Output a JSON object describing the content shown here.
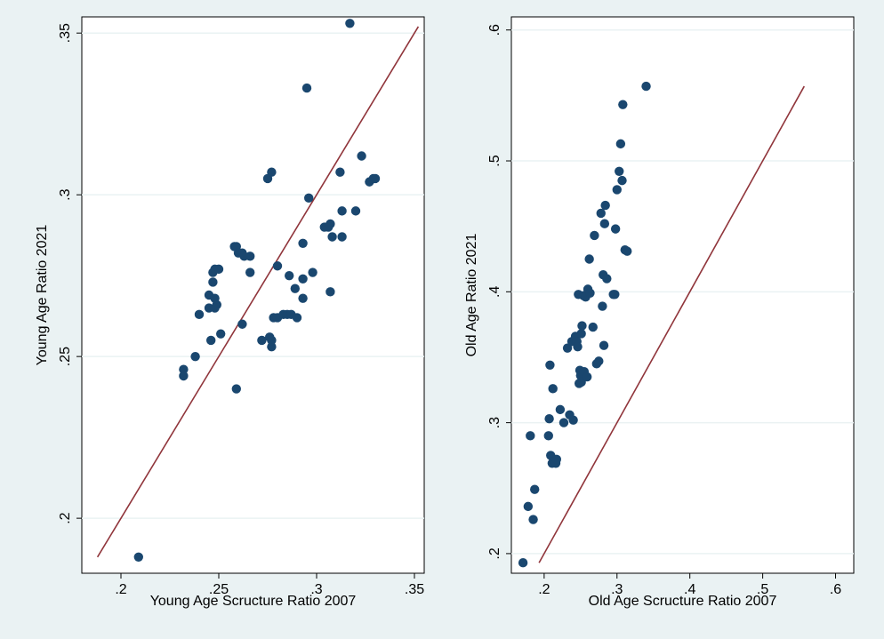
{
  "chart_data": [
    {
      "type": "scatter",
      "xlabel": "Young Age Scructure Ratio 2007",
      "ylabel": "Young Age Ratio 2021",
      "xlim": [
        0.18,
        0.355
      ],
      "ylim": [
        0.183,
        0.355
      ],
      "xticks": [
        0.2,
        0.25,
        0.3,
        0.35
      ],
      "xtick_labels": [
        ".2",
        ".25",
        ".3",
        ".35"
      ],
      "yticks": [
        0.2,
        0.25,
        0.3,
        0.35
      ],
      "ytick_labels": [
        ".2",
        ".25",
        ".3",
        ".35"
      ],
      "grid": "horizontal",
      "marker_color": "#1a476f",
      "line_color": "#90353b",
      "reference_line": {
        "type": "identity",
        "from": 0.188,
        "to": 0.352
      },
      "points": [
        [
          0.209,
          0.188
        ],
        [
          0.232,
          0.246
        ],
        [
          0.232,
          0.244
        ],
        [
          0.238,
          0.25
        ],
        [
          0.24,
          0.263
        ],
        [
          0.245,
          0.269
        ],
        [
          0.245,
          0.265
        ],
        [
          0.246,
          0.255
        ],
        [
          0.247,
          0.273
        ],
        [
          0.247,
          0.276
        ],
        [
          0.248,
          0.277
        ],
        [
          0.248,
          0.268
        ],
        [
          0.248,
          0.265
        ],
        [
          0.249,
          0.266
        ],
        [
          0.25,
          0.277
        ],
        [
          0.251,
          0.257
        ],
        [
          0.258,
          0.284
        ],
        [
          0.259,
          0.284
        ],
        [
          0.259,
          0.24
        ],
        [
          0.26,
          0.282
        ],
        [
          0.262,
          0.26
        ],
        [
          0.262,
          0.282
        ],
        [
          0.263,
          0.281
        ],
        [
          0.266,
          0.276
        ],
        [
          0.266,
          0.281
        ],
        [
          0.272,
          0.255
        ],
        [
          0.275,
          0.305
        ],
        [
          0.276,
          0.256
        ],
        [
          0.277,
          0.307
        ],
        [
          0.277,
          0.253
        ],
        [
          0.277,
          0.255
        ],
        [
          0.278,
          0.262
        ],
        [
          0.28,
          0.262
        ],
        [
          0.28,
          0.278
        ],
        [
          0.283,
          0.263
        ],
        [
          0.285,
          0.263
        ],
        [
          0.286,
          0.275
        ],
        [
          0.287,
          0.263
        ],
        [
          0.289,
          0.271
        ],
        [
          0.29,
          0.262
        ],
        [
          0.293,
          0.285
        ],
        [
          0.293,
          0.268
        ],
        [
          0.293,
          0.274
        ],
        [
          0.295,
          0.333
        ],
        [
          0.296,
          0.299
        ],
        [
          0.298,
          0.276
        ],
        [
          0.304,
          0.29
        ],
        [
          0.306,
          0.29
        ],
        [
          0.307,
          0.291
        ],
        [
          0.307,
          0.27
        ],
        [
          0.308,
          0.287
        ],
        [
          0.312,
          0.307
        ],
        [
          0.313,
          0.287
        ],
        [
          0.313,
          0.295
        ],
        [
          0.317,
          0.353
        ],
        [
          0.32,
          0.295
        ],
        [
          0.323,
          0.312
        ],
        [
          0.327,
          0.304
        ],
        [
          0.329,
          0.305
        ],
        [
          0.33,
          0.305
        ]
      ]
    },
    {
      "type": "scatter",
      "xlabel": "Old Age Scructure Ratio 2007",
      "ylabel": "Old Age Ratio 2021",
      "xlim": [
        0.155,
        0.625
      ],
      "ylim": [
        0.185,
        0.61
      ],
      "xticks": [
        0.2,
        0.3,
        0.4,
        0.5,
        0.6
      ],
      "xtick_labels": [
        ".2",
        ".3",
        ".4",
        ".5",
        ".6"
      ],
      "yticks": [
        0.2,
        0.3,
        0.4,
        0.5,
        0.6
      ],
      "ytick_labels": [
        ".2",
        ".3",
        ".4",
        ".5",
        ".6"
      ],
      "grid": "horizontal",
      "marker_color": "#1a476f",
      "line_color": "#90353b",
      "reference_line": {
        "type": "identity",
        "from": 0.193,
        "to": 0.557
      },
      "points": [
        [
          0.171,
          0.193
        ],
        [
          0.178,
          0.236
        ],
        [
          0.181,
          0.29
        ],
        [
          0.185,
          0.226
        ],
        [
          0.187,
          0.249
        ],
        [
          0.206,
          0.29
        ],
        [
          0.207,
          0.303
        ],
        [
          0.208,
          0.344
        ],
        [
          0.209,
          0.275
        ],
        [
          0.211,
          0.269
        ],
        [
          0.212,
          0.326
        ],
        [
          0.214,
          0.271
        ],
        [
          0.216,
          0.269
        ],
        [
          0.217,
          0.272
        ],
        [
          0.222,
          0.31
        ],
        [
          0.227,
          0.3
        ],
        [
          0.232,
          0.357
        ],
        [
          0.235,
          0.306
        ],
        [
          0.238,
          0.362
        ],
        [
          0.24,
          0.302
        ],
        [
          0.243,
          0.366
        ],
        [
          0.245,
          0.362
        ],
        [
          0.246,
          0.358
        ],
        [
          0.247,
          0.398
        ],
        [
          0.248,
          0.33
        ],
        [
          0.249,
          0.34
        ],
        [
          0.25,
          0.336
        ],
        [
          0.251,
          0.331
        ],
        [
          0.251,
          0.368
        ],
        [
          0.252,
          0.374
        ],
        [
          0.254,
          0.397
        ],
        [
          0.255,
          0.339
        ],
        [
          0.257,
          0.396
        ],
        [
          0.259,
          0.335
        ],
        [
          0.26,
          0.402
        ],
        [
          0.262,
          0.425
        ],
        [
          0.263,
          0.399
        ],
        [
          0.267,
          0.373
        ],
        [
          0.269,
          0.443
        ],
        [
          0.272,
          0.345
        ],
        [
          0.275,
          0.347
        ],
        [
          0.278,
          0.46
        ],
        [
          0.28,
          0.389
        ],
        [
          0.281,
          0.413
        ],
        [
          0.282,
          0.359
        ],
        [
          0.283,
          0.452
        ],
        [
          0.284,
          0.466
        ],
        [
          0.286,
          0.41
        ],
        [
          0.295,
          0.398
        ],
        [
          0.297,
          0.398
        ],
        [
          0.298,
          0.448
        ],
        [
          0.3,
          0.478
        ],
        [
          0.303,
          0.492
        ],
        [
          0.305,
          0.513
        ],
        [
          0.307,
          0.485
        ],
        [
          0.308,
          0.543
        ],
        [
          0.311,
          0.432
        ],
        [
          0.314,
          0.431
        ],
        [
          0.34,
          0.557
        ]
      ]
    }
  ]
}
